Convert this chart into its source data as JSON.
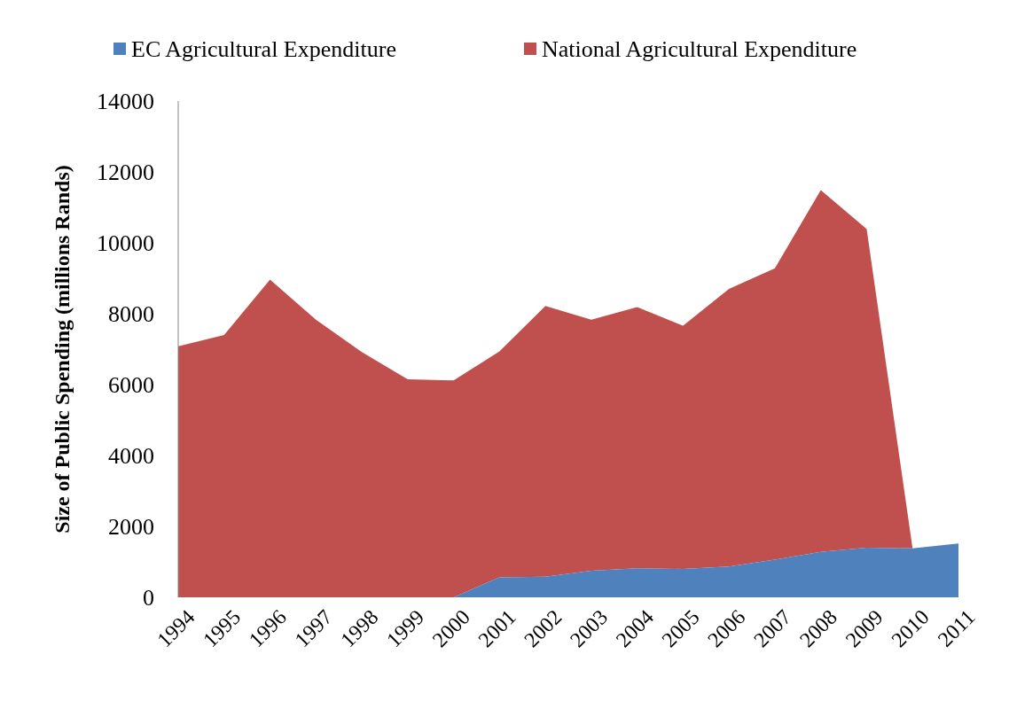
{
  "chart_data": {
    "type": "area",
    "stacked": true,
    "ylabel": "Size of Public Spending (millions Rands)",
    "categories": [
      "1994",
      "1995",
      "1996",
      "1997",
      "1998",
      "1999",
      "2000",
      "2001",
      "2002",
      "2003",
      "2004",
      "2005",
      "2006",
      "2007",
      "2008",
      "2009",
      "2010",
      "2011"
    ],
    "series": [
      {
        "name": "EC Agricultural  Expenditure",
        "color": "#4f81bd",
        "values": [
          0,
          0,
          0,
          0,
          0,
          0,
          0,
          560,
          580,
          750,
          820,
          800,
          870,
          1060,
          1280,
          1400,
          1380,
          1520
        ]
      },
      {
        "name": "National Agricultural Expenditure",
        "color": "#c0504d",
        "values": [
          7080,
          7400,
          8960,
          7830,
          6920,
          6150,
          6120,
          6380,
          7640,
          7080,
          7370,
          6860,
          7830,
          8220,
          10210,
          8990,
          0,
          0
        ]
      }
    ],
    "ylim": [
      0,
      14000
    ],
    "yticks": [
      0,
      2000,
      4000,
      6000,
      8000,
      10000,
      12000,
      14000
    ],
    "legend": "top"
  }
}
